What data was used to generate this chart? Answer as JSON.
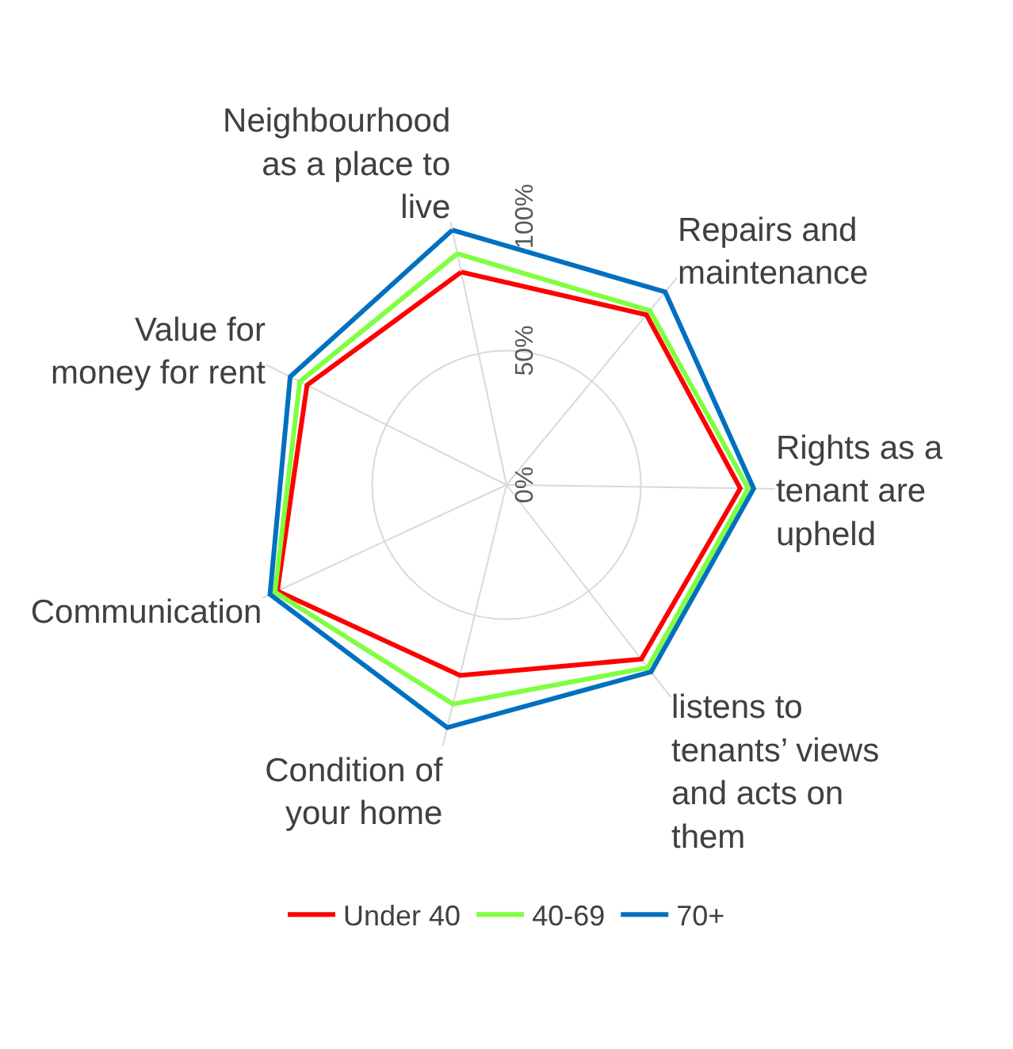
{
  "chart_data": {
    "type": "radar",
    "categories": [
      "Neighbourhood as a place to live",
      "Repairs and maintenance",
      "Rights as a tenant are upheld",
      "listens to tenants’ views and acts on them",
      "Condition of your home",
      "Communication",
      "Value for money for rent"
    ],
    "series": [
      {
        "name": "Under 40",
        "color": "#ff0000",
        "values": [
          81,
          82,
          87,
          82,
          73,
          94,
          83
        ]
      },
      {
        "name": "40-69",
        "color": "#80ff40",
        "values": [
          88,
          84,
          90,
          86,
          84,
          95,
          86
        ]
      },
      {
        "name": "70+",
        "color": "#0070c0",
        "values": [
          97,
          93,
          92,
          88,
          93,
          97,
          90
        ]
      }
    ],
    "ylim": [
      0,
      100
    ],
    "yticks": [
      {
        "value": 0,
        "label": "0%"
      },
      {
        "value": 50,
        "label": "50%"
      },
      {
        "value": 100,
        "label": "100%"
      }
    ],
    "grid": true,
    "legend": "bottom",
    "marker": "none",
    "line_style": "solid"
  }
}
